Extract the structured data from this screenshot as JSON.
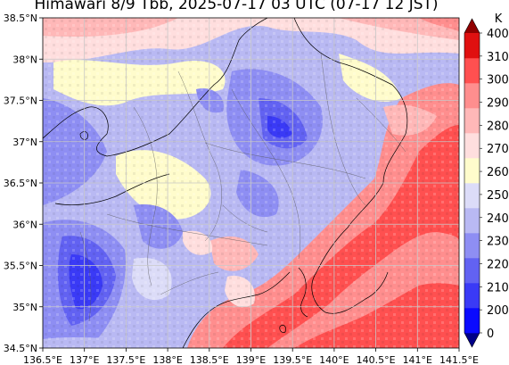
{
  "title": "Himawari 8/9 Tbb, 2025-07-17 03 UTC (07-17 12 JST)",
  "colorbar": {
    "unit": "K",
    "levels": [
      0,
      200,
      210,
      220,
      230,
      240,
      250,
      260,
      270,
      280,
      290,
      300,
      310,
      400
    ],
    "labels": [
      "400",
      "310",
      "300",
      "290",
      "280",
      "270",
      "260",
      "250",
      "240",
      "230",
      "220",
      "210",
      "200",
      "0"
    ],
    "colors": [
      "#000088",
      "#0a0aff",
      "#3a3af6",
      "#6262f2",
      "#8e8ef3",
      "#b9b9f3",
      "#dcdcf8",
      "#fffccc",
      "#ffdede",
      "#ffb8b8",
      "#ff8e8e",
      "#ff5050",
      "#e01010",
      "#900000"
    ]
  },
  "axes": {
    "lon_labels": [
      "136.5°E",
      "137°E",
      "137.5°E",
      "138°E",
      "138.5°E",
      "139°E",
      "139.5°E",
      "140°E",
      "140.5°E",
      "141°E",
      "141.5°E"
    ],
    "lat_labels": [
      "38.5°N",
      "38°N",
      "37.5°N",
      "37°N",
      "36.5°N",
      "36°N",
      "35.5°N",
      "35°N",
      "34.5°N"
    ],
    "lon_range": [
      136.5,
      141.5
    ],
    "lat_range": [
      34.5,
      38.5
    ],
    "grid": true
  }
}
